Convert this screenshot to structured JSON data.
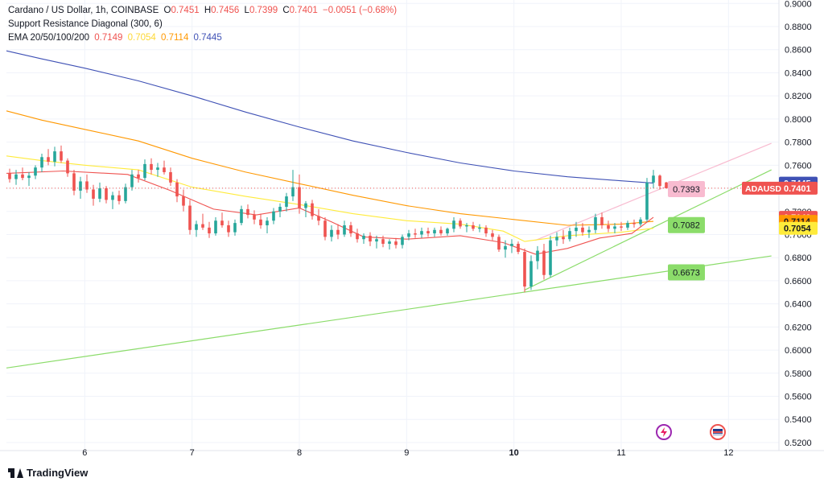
{
  "header": {
    "symbol_title": "Cardano / US Dollar, 1h, COINBASE",
    "ohlc": [
      {
        "label": "O",
        "value": "0.7451"
      },
      {
        "label": "H",
        "value": "0.7456"
      },
      {
        "label": "L",
        "value": "0.7399"
      },
      {
        "label": "C",
        "value": "0.7401"
      }
    ],
    "change": "−0.0051 (−0.68%)",
    "indicator1": "Support Resistance Diagonal (300, 6)",
    "indicator2_name": "EMA 20/50/100/200",
    "ema_values": [
      "0.7149",
      "0.7054",
      "0.7114",
      "0.7445"
    ]
  },
  "brand": "TradingView",
  "colors": {
    "up": "#26a69a",
    "down": "#ef5350",
    "ema20": "#ef5350",
    "ema50": "#ffeb3b",
    "ema100": "#ff9800",
    "ema200": "#3f51b5",
    "resistance": "#f8bbd0",
    "support": "#8bdc6a"
  },
  "chart_data": {
    "type": "candlestick",
    "y_ticks": [
      "0.9000",
      "0.8800",
      "0.8600",
      "0.8400",
      "0.8200",
      "0.8000",
      "0.7800",
      "0.7600",
      "0.7400",
      "0.7200",
      "0.7000",
      "0.6800",
      "0.6600",
      "0.6400",
      "0.6200",
      "0.6000",
      "0.5800",
      "0.5600",
      "0.5400",
      "0.5200"
    ],
    "ylim": [
      0.513,
      0.903
    ],
    "x_ticks": [
      {
        "label": "6",
        "day": 6,
        "bold": false
      },
      {
        "label": "7",
        "day": 7,
        "bold": false
      },
      {
        "label": "8",
        "day": 8,
        "bold": false
      },
      {
        "label": "9",
        "day": 9,
        "bold": false
      },
      {
        "label": "10",
        "day": 10,
        "bold": true
      },
      {
        "label": "11",
        "day": 11,
        "bold": false
      },
      {
        "label": "12",
        "day": 12,
        "bold": false
      }
    ],
    "x_range_days": [
      5.27,
      12.47
    ],
    "last_price": "0.7401",
    "last_price_value": 0.7401,
    "price_labels": [
      {
        "text": "0.7445",
        "value": 0.7445,
        "color": "#3f51b5",
        "text_color": "#ffffff"
      },
      {
        "text": "ADAUSD",
        "value": 0.7401,
        "color": "#ef5350",
        "text_color": "#ffffff",
        "second": "0.7401"
      },
      {
        "text": "0.7149",
        "value": 0.7149,
        "color": "#ef5350",
        "text_color": "#ffffff"
      },
      {
        "text": "0.7114",
        "value": 0.7114,
        "color": "#ff9800",
        "text_color": "#131722"
      },
      {
        "text": "0.7054",
        "value": 0.7054,
        "color": "#ffeb3b",
        "text_color": "#131722"
      }
    ],
    "level_callouts": [
      {
        "text": "0.7393",
        "value": 0.7393,
        "day": 11.5,
        "color": "#f8bbd0"
      },
      {
        "text": "0.7082",
        "value": 0.7082,
        "day": 11.5,
        "color": "#8bdc6a"
      },
      {
        "text": "0.6673",
        "value": 0.6673,
        "day": 11.5,
        "color": "#8bdc6a"
      }
    ],
    "lines": [
      {
        "name": "",
        "kind": "resistance",
        "from": [
          10.2,
          0.695
        ],
        "to": [
          12.4,
          0.779
        ]
      },
      {
        "name": "",
        "kind": "support",
        "from": [
          10.1,
          0.652
        ],
        "to": [
          12.4,
          0.756
        ]
      },
      {
        "name": "",
        "kind": "support",
        "from": [
          5.27,
          0.5845
        ],
        "to": [
          12.4,
          0.6815
        ]
      }
    ],
    "ema": [
      {
        "name": "",
        "key": "ema200",
        "points": [
          [
            5.27,
            0.859
          ],
          [
            5.6,
            0.852
          ],
          [
            6.0,
            0.844
          ],
          [
            6.5,
            0.833
          ],
          [
            7.0,
            0.82
          ],
          [
            7.5,
            0.806
          ],
          [
            8.0,
            0.793
          ],
          [
            8.5,
            0.781
          ],
          [
            9.0,
            0.771
          ],
          [
            9.5,
            0.762
          ],
          [
            10.0,
            0.755
          ],
          [
            10.5,
            0.75
          ],
          [
            11.0,
            0.7465
          ],
          [
            11.3,
            0.7445
          ]
        ]
      },
      {
        "name": "",
        "key": "ema100",
        "points": [
          [
            5.27,
            0.807
          ],
          [
            5.6,
            0.799
          ],
          [
            6.0,
            0.791
          ],
          [
            6.5,
            0.781
          ],
          [
            7.0,
            0.766
          ],
          [
            7.5,
            0.754
          ],
          [
            8.0,
            0.744
          ],
          [
            8.5,
            0.734
          ],
          [
            9.0,
            0.725
          ],
          [
            9.5,
            0.718
          ],
          [
            10.0,
            0.713
          ],
          [
            10.5,
            0.708
          ],
          [
            11.0,
            0.709
          ],
          [
            11.3,
            0.7114
          ]
        ]
      },
      {
        "name": "",
        "key": "ema50",
        "points": [
          [
            5.27,
            0.768
          ],
          [
            5.6,
            0.764
          ],
          [
            6.0,
            0.76
          ],
          [
            6.5,
            0.756
          ],
          [
            7.0,
            0.741
          ],
          [
            7.5,
            0.733
          ],
          [
            8.0,
            0.726
          ],
          [
            8.5,
            0.718
          ],
          [
            9.0,
            0.712
          ],
          [
            9.5,
            0.709
          ],
          [
            9.9,
            0.703
          ],
          [
            10.1,
            0.694
          ],
          [
            10.5,
            0.699
          ],
          [
            11.0,
            0.702
          ],
          [
            11.3,
            0.7054
          ]
        ]
      },
      {
        "name": "",
        "key": "ema20",
        "points": [
          [
            5.27,
            0.753
          ],
          [
            5.8,
            0.755
          ],
          [
            6.4,
            0.752
          ],
          [
            6.8,
            0.738
          ],
          [
            7.2,
            0.722
          ],
          [
            7.6,
            0.717
          ],
          [
            8.0,
            0.723
          ],
          [
            8.3,
            0.711
          ],
          [
            8.6,
            0.698
          ],
          [
            9.0,
            0.696
          ],
          [
            9.5,
            0.699
          ],
          [
            9.9,
            0.693
          ],
          [
            10.2,
            0.683
          ],
          [
            10.5,
            0.688
          ],
          [
            10.8,
            0.697
          ],
          [
            11.1,
            0.701
          ],
          [
            11.3,
            0.7149
          ]
        ]
      }
    ],
    "candles_compact": "5.30,0.7530,0.7570,0.7450,0.7480;5.36,0.7480,0.7560,0.7430,0.7520;5.42,0.7520,0.7580,0.7470,0.7490;5.48,0.7490,0.7540,0.7420,0.7510;5.54,0.7510,0.7600,0.7480,0.7580;5.60,0.7580,0.7700,0.7540,0.7670;5.66,0.7670,0.7740,0.7600,0.7630;5.72,0.7630,0.7760,0.7590,0.7720;5.78,0.7720,0.7770,0.7620,0.7640;5.84,0.7640,0.7660,0.7500,0.7530;5.90,0.7530,0.7560,0.7340,0.7380;5.96,0.7380,0.7500,0.7310,0.7460;6.02,0.7460,0.7520,0.7360,0.7390;6.08,0.7390,0.7430,0.7250,0.7310;6.14,0.7310,0.7450,0.7280,0.7400;6.20,0.7400,0.7420,0.7270,0.7300;6.26,0.7300,0.7370,0.7220,0.7340;6.32,0.7340,0.7380,0.7260,0.7290;6.38,0.7290,0.7440,0.7270,0.7410;6.44,0.7410,0.7560,0.7380,0.7520;6.50,0.7520,0.7560,0.7450,0.7490;6.56,0.7490,0.7650,0.7470,0.7610;6.62,0.7610,0.7660,0.7520,0.7560;6.68,0.7560,0.7620,0.7500,0.7580;6.74,0.7580,0.7640,0.7520,0.7540;6.80,0.7540,0.7580,0.7420,0.7450;6.86,0.7450,0.7480,0.7280,0.7330;6.92,0.7330,0.7390,0.7200,0.7250;6.98,0.7250,0.7300,0.7000,0.7040;7.04,0.7040,0.7120,0.6980,0.7090;7.10,0.7090,0.7180,0.7040,0.7060;7.16,0.7060,0.7110,0.6970,0.7010;7.22,0.7010,0.7150,0.6990,0.7120;7.28,0.7120,0.7190,0.7060,0.7080;7.34,0.7080,0.7120,0.6980,0.7020;7.40,0.7020,0.7130,0.6990,0.7100;7.46,0.7100,0.7250,0.7080,0.7220;7.52,0.7220,0.7260,0.7140,0.7170;7.58,0.7170,0.7210,0.7090,0.7130;7.64,0.7130,0.7180,0.7050,0.7080;7.70,0.7080,0.7150,0.7010,0.7120;7.76,0.7120,0.7230,0.7090,0.7200;7.82,0.7200,0.7270,0.7150,0.7240;7.88,0.7240,0.7360,0.7200,0.7330;7.94,0.7330,0.7560,0.7290,0.7410;8.00,0.7410,0.7520,0.7180,0.7230;8.06,0.7230,0.7290,0.7150,0.7270;8.12,0.7270,0.7300,0.7130,0.7160;8.18,0.7160,0.7220,0.7080,0.7120;8.24,0.7120,0.7150,0.6950,0.6980;8.30,0.6980,0.7080,0.6940,0.7040;8.36,0.7040,0.7090,0.6960,0.7000;8.42,0.7000,0.7120,0.6980,0.7080;8.48,0.7080,0.7110,0.6980,0.7010;8.54,0.7010,0.7050,0.6930,0.6960;8.60,0.6960,0.7010,0.6920,0.6990;8.66,0.6990,0.7020,0.6900,0.6940;8.72,0.6940,0.6990,0.6880,0.6960;8.78,0.6960,0.6990,0.6890,0.6920;8.84,0.6920,0.6960,0.6870,0.6940;8.90,0.6940,0.6970,0.6880,0.6910;8.96,0.6910,0.7000,0.6880,0.6980;9.02,0.6980,0.7040,0.6950,0.7010;9.08,0.7010,0.7050,0.6970,0.7000;9.14,0.7000,0.7060,0.6970,0.7030;9.20,0.7030,0.7060,0.6980,0.7010;9.26,0.7010,0.7060,0.6980,0.7040;9.32,0.7040,0.7070,0.6990,0.7010;9.38,0.7010,0.7060,0.6990,0.7050;9.44,0.7050,0.7150,0.7020,0.7120;9.50,0.7120,0.7140,0.7050,0.7070;9.56,0.7070,0.7100,0.7020,0.7080;9.62,0.7080,0.7110,0.7030,0.7050;9.68,0.7050,0.7090,0.7020,0.7060;9.74,0.7060,0.7080,0.6980,0.7010;9.80,0.7010,0.7040,0.6950,0.6980;9.86,0.6980,0.7000,0.6850,0.6870;9.92,0.6870,0.6950,0.6800,0.6900;9.98,0.6900,0.6960,0.6840,0.6920;10.04,0.6920,0.6940,0.6830,0.6850;10.10,0.6850,0.6880,0.6500,0.6550;10.16,0.6550,0.6820,0.6520,0.6770;10.22,0.6770,0.6900,0.6700,0.6860;10.28,0.6860,0.6920,0.6610,0.6650;10.34,0.6650,0.6990,0.6630,0.6950;10.40,0.6950,0.7020,0.6900,0.6980;10.46,0.6980,0.7040,0.6920,0.6960;10.52,0.6960,0.7060,0.6940,0.7030;10.58,0.7030,0.7110,0.6980,0.7060;10.64,0.7060,0.7100,0.6990,0.7020;10.70,0.7020,0.7070,0.6970,0.7040;10.76,0.7040,0.7180,0.7010,0.7150;10.82,0.7150,0.7190,0.7050,0.7080;10.88,0.7080,0.7120,0.7020,0.7050;10.94,0.7050,0.7100,0.7010,0.7070;11.00,0.7070,0.7110,0.7030,0.7060;11.06,0.7060,0.7120,0.7040,0.7100;11.12,0.7100,0.7130,0.7060,0.7090;11.18,0.7090,0.7150,0.7070,0.7130;11.24,0.7130,0.7490,0.7110,0.7450;11.30,0.7450,0.7560,0.7400,0.7510;11.36,0.7510,0.7520,0.7390,0.7420;11.42,0.7451,0.7456,0.7399,0.7401"
  }
}
